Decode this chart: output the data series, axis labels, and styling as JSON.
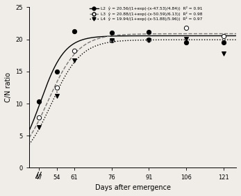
{
  "x_ticks": [
    47,
    54,
    61,
    76,
    91,
    106,
    121
  ],
  "xlabel": "Days after emergence",
  "ylabel": "C/N ratio",
  "ylim": [
    0,
    25
  ],
  "xlim": [
    43,
    126
  ],
  "series": [
    {
      "label": "L2",
      "a": 20.56,
      "b": 47.53,
      "c": 4.84,
      "r2": "0.91",
      "data_x": [
        47,
        54,
        61,
        76,
        91,
        106,
        121
      ],
      "data_y": [
        10.3,
        15.0,
        21.3,
        21.0,
        21.1,
        19.5,
        19.5
      ],
      "line_style": "-",
      "marker": "o",
      "marker_fill": "black",
      "color": "black",
      "lw": 1.0
    },
    {
      "label": "L3",
      "a": 20.88,
      "b": 50.59,
      "c": 6.13,
      "r2": "0.98",
      "data_x": [
        47,
        54,
        61,
        76,
        91,
        106,
        121
      ],
      "data_y": [
        7.8,
        12.5,
        18.2,
        19.8,
        20.0,
        21.8,
        20.5
      ],
      "line_style": "--",
      "marker": "o",
      "marker_fill": "white",
      "color": "#777777",
      "lw": 1.0
    },
    {
      "label": "L4",
      "a": 19.94,
      "b": 51.88,
      "c": 5.96,
      "r2": "0.97",
      "data_x": [
        47,
        54,
        61,
        76,
        91,
        106,
        121
      ],
      "data_y": [
        6.3,
        11.2,
        16.7,
        19.9,
        19.8,
        20.1,
        17.8
      ],
      "line_style": ":",
      "marker": "v",
      "marker_fill": "black",
      "color": "black",
      "lw": 1.0
    }
  ],
  "legend_lines": [
    "L2  ŷ = 20.56/(1+exp(-(x-47.53)/4.84))  R² = 0.91",
    "L3  ŷ = 20.88/(1+exp(-(x-50.59)/6.13))  R² = 0.98",
    "L4  ŷ = 19.94/(1+exp(-(x-51.88)/5.96))  R² = 0.97"
  ],
  "yticks": [
    0,
    5,
    10,
    15,
    20,
    25
  ],
  "bg_color": "#f0ede8"
}
